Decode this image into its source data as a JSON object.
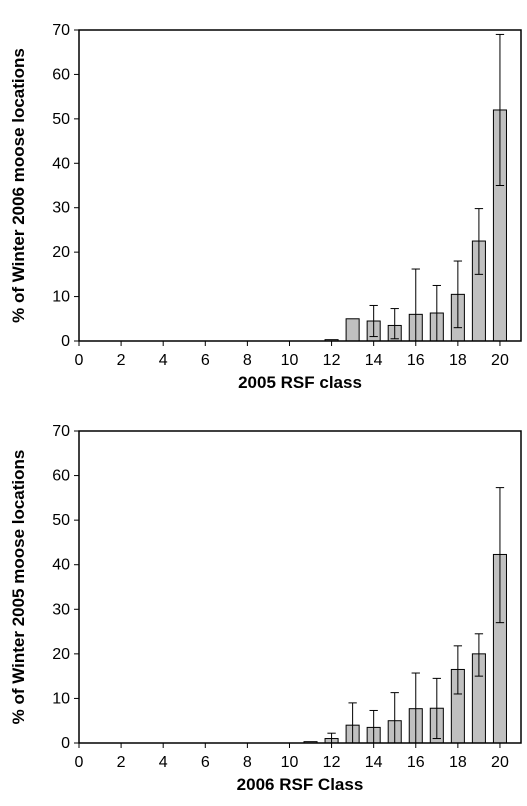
{
  "colors": {
    "bar_fill": "#c0c0c0",
    "bar_stroke": "#000000",
    "axis": "#000000"
  },
  "chart_data": [
    {
      "type": "bar",
      "title": "",
      "xlabel": "2005 RSF class",
      "ylabel": "% of Winter 2006 moose locations",
      "xlim": [
        0,
        21
      ],
      "ylim": [
        0,
        70
      ],
      "xticks": [
        0,
        2,
        4,
        6,
        8,
        10,
        12,
        14,
        16,
        18,
        20
      ],
      "yticks": [
        0,
        10,
        20,
        30,
        40,
        50,
        60,
        70
      ],
      "grid": false,
      "bars": [
        {
          "x": 12,
          "value": 0.3,
          "err_low": 0.3,
          "err_high": 0.3
        },
        {
          "x": 13,
          "value": 5.0,
          "err_low": 5.0,
          "err_high": 5.0
        },
        {
          "x": 14,
          "value": 4.5,
          "err_low": 1.0,
          "err_high": 8.0
        },
        {
          "x": 15,
          "value": 3.5,
          "err_low": 0.5,
          "err_high": 7.3
        },
        {
          "x": 16,
          "value": 6.0,
          "err_low": 0.0,
          "err_high": 16.2
        },
        {
          "x": 17,
          "value": 6.3,
          "err_low": 0.0,
          "err_high": 12.5
        },
        {
          "x": 18,
          "value": 10.5,
          "err_low": 3.0,
          "err_high": 18.0
        },
        {
          "x": 19,
          "value": 22.5,
          "err_low": 15.0,
          "err_high": 29.8
        },
        {
          "x": 20,
          "value": 52.0,
          "err_low": 35.0,
          "err_high": 69.0
        }
      ]
    },
    {
      "type": "bar",
      "title": "",
      "xlabel": "2006 RSF Class",
      "ylabel": "% of Winter 2005 moose locations",
      "xlim": [
        0,
        21
      ],
      "ylim": [
        0,
        70
      ],
      "xticks": [
        0,
        2,
        4,
        6,
        8,
        10,
        12,
        14,
        16,
        18,
        20
      ],
      "yticks": [
        0,
        10,
        20,
        30,
        40,
        50,
        60,
        70
      ],
      "grid": false,
      "bars": [
        {
          "x": 11,
          "value": 0.3,
          "err_low": 0.3,
          "err_high": 0.3
        },
        {
          "x": 12,
          "value": 1.0,
          "err_low": 0.0,
          "err_high": 2.2
        },
        {
          "x": 13,
          "value": 4.0,
          "err_low": 0.0,
          "err_high": 9.0
        },
        {
          "x": 14,
          "value": 3.5,
          "err_low": 0.0,
          "err_high": 7.3
        },
        {
          "x": 15,
          "value": 5.0,
          "err_low": 0.0,
          "err_high": 11.3
        },
        {
          "x": 16,
          "value": 7.7,
          "err_low": 0.0,
          "err_high": 15.7
        },
        {
          "x": 17,
          "value": 7.8,
          "err_low": 1.0,
          "err_high": 14.5
        },
        {
          "x": 18,
          "value": 16.5,
          "err_low": 11.0,
          "err_high": 21.8
        },
        {
          "x": 19,
          "value": 20.0,
          "err_low": 15.0,
          "err_high": 24.5
        },
        {
          "x": 20,
          "value": 42.3,
          "err_low": 27.0,
          "err_high": 57.3
        }
      ]
    }
  ]
}
